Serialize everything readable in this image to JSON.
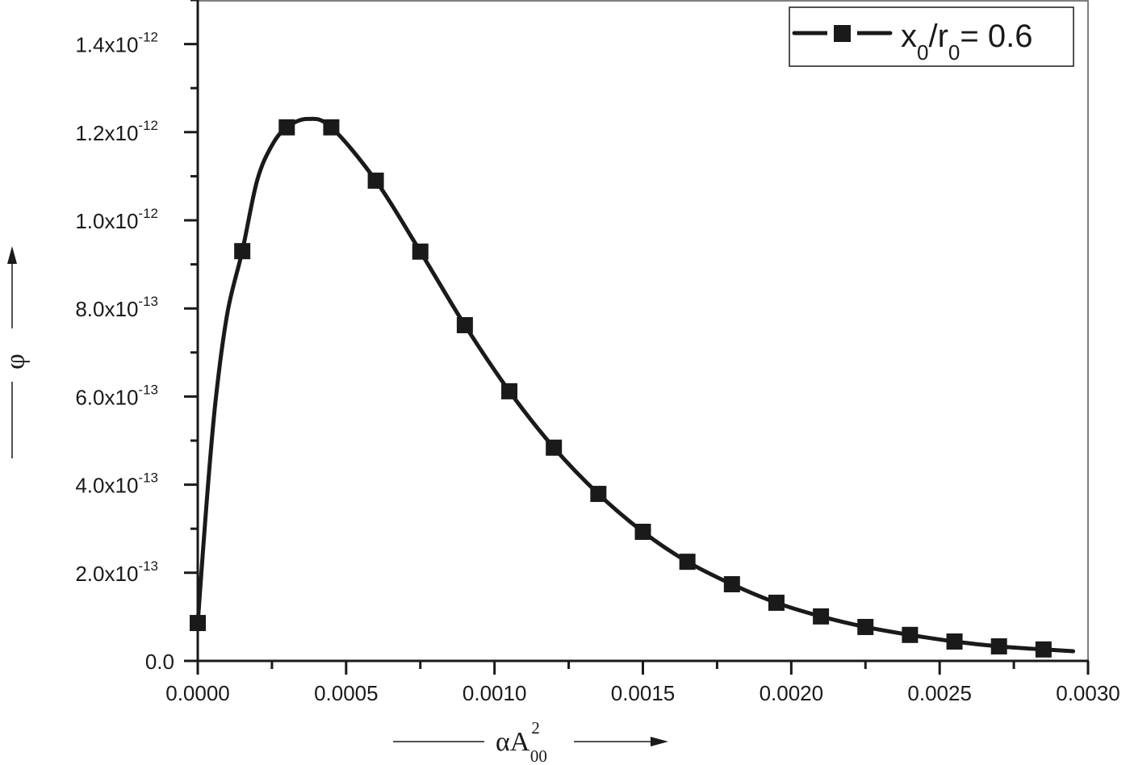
{
  "chart_data": {
    "type": "line",
    "title": "",
    "xlabel": "αA²₀₀",
    "ylabel": "φ",
    "xlim": [
      0.0,
      0.003
    ],
    "ylim": [
      0.0,
      1.5e-12
    ],
    "grid": false,
    "legend_position": "top-right",
    "x_ticks": [
      "0.0000",
      "0.0005",
      "0.0010",
      "0.0015",
      "0.0020",
      "0.0025",
      "0.0030"
    ],
    "y_ticks": [
      {
        "mant": "0.0",
        "exp": ""
      },
      {
        "mant": "2.0x10",
        "exp": "-13"
      },
      {
        "mant": "4.0x10",
        "exp": "-13"
      },
      {
        "mant": "6.0x10",
        "exp": "-13"
      },
      {
        "mant": "8.0x10",
        "exp": "-13"
      },
      {
        "mant": "1.0x10",
        "exp": "-12"
      },
      {
        "mant": "1.2x10",
        "exp": "-12"
      },
      {
        "mant": "1.4x10",
        "exp": "-12"
      }
    ],
    "series": [
      {
        "name": "x0/r0 = 0.6",
        "marker": "square",
        "color": "#1a1a1a",
        "x": [
          0.0,
          0.00015,
          0.0003,
          0.00045,
          0.0006,
          0.00075,
          0.0009,
          0.00105,
          0.0012,
          0.00135,
          0.0015,
          0.00165,
          0.0018,
          0.00195,
          0.0021,
          0.00225,
          0.0024,
          0.00255,
          0.0027,
          0.00285
        ],
        "values": [
          8.6e-14,
          9.3e-13,
          1.211e-12,
          1.211e-12,
          1.09e-12,
          9.29e-13,
          7.62e-13,
          6.12e-13,
          4.84e-13,
          3.79e-13,
          2.93e-13,
          2.25e-13,
          1.74e-13,
          1.32e-13,
          1.01e-13,
          7.7e-14,
          5.9e-14,
          4.4e-14,
          3.3e-14,
          2.6e-14
        ]
      }
    ],
    "curve": {
      "x": [
        0.0,
        3e-05,
        6e-05,
        0.0001,
        0.00015,
        0.0002,
        0.00025,
        0.0003,
        0.00037,
        0.00045,
        0.0006,
        0.00075,
        0.0009,
        0.00105,
        0.0012,
        0.00135,
        0.0015,
        0.00165,
        0.0018,
        0.00195,
        0.0021,
        0.00225,
        0.0024,
        0.00255,
        0.0027,
        0.00285,
        0.00295
      ],
      "values": [
        8.6e-14,
        3.6e-13,
        5.9e-13,
        7.9e-13,
        9.3e-13,
        1.09e-12,
        1.17e-12,
        1.211e-12,
        1.23e-12,
        1.211e-12,
        1.09e-12,
        9.29e-13,
        7.62e-13,
        6.12e-13,
        4.84e-13,
        3.79e-13,
        2.93e-13,
        2.25e-13,
        1.74e-13,
        1.32e-13,
        1.01e-13,
        7.7e-14,
        5.9e-14,
        4.4e-14,
        3.3e-14,
        2.6e-14,
        2.2e-14
      ]
    }
  },
  "legend": {
    "label_main": "x",
    "label_sub1": "0",
    "label_mid": "/r",
    "label_sub2": "0",
    "label_tail": "= 0.6"
  },
  "axes": {
    "x_title_main": "αA",
    "x_title_sup": "2",
    "x_title_sub": "00",
    "y_title": "φ"
  }
}
